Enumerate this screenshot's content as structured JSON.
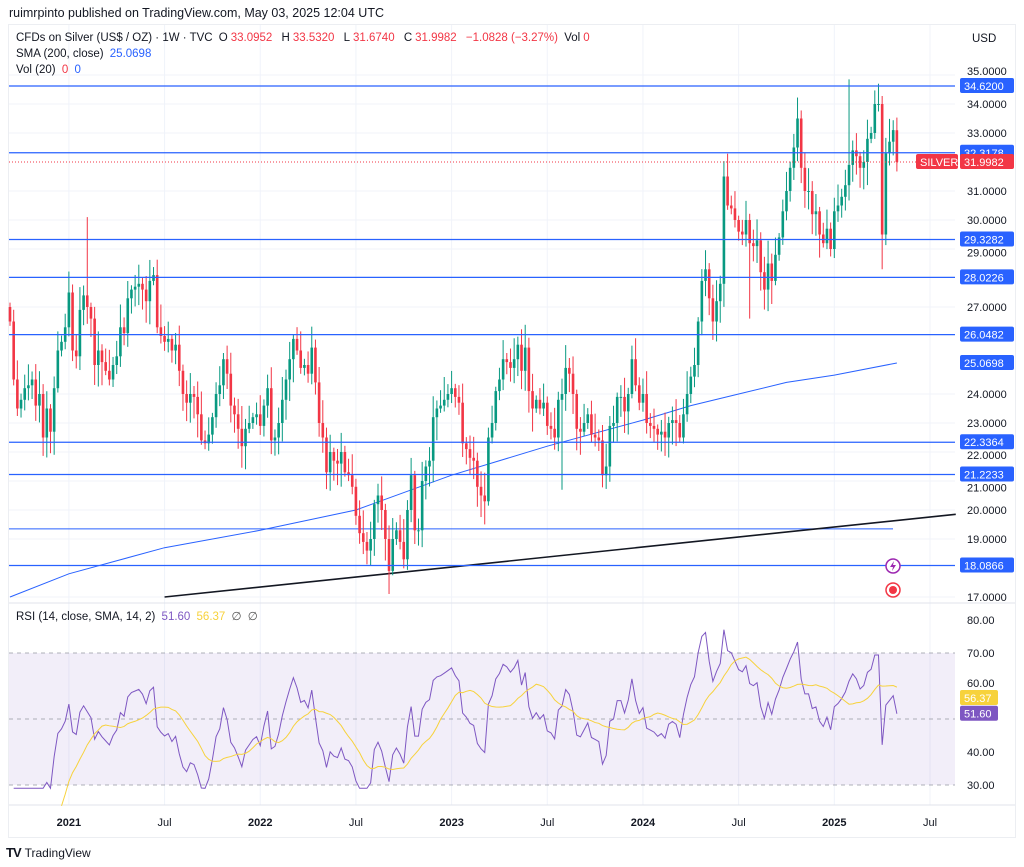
{
  "header": {
    "published": "ruimrpinto published on TradingView.com, May 03, 2025 12:04 UTC",
    "symbol": "CFDs on Silver (US$ / OZ) · 1W · TVC",
    "o_label": "O",
    "o": "33.0952",
    "h_label": "H",
    "h": "33.5320",
    "l_label": "L",
    "l": "31.6740",
    "c_label": "C",
    "c": "31.9982",
    "change": "−1.0828 (−3.27%)",
    "vol_label": "Vol",
    "vol": "0",
    "sma_label": "SMA (200, close)",
    "sma_value": "25.0698",
    "vol20_label": "Vol (20)",
    "vol20_a": "0",
    "vol20_b": "0",
    "currency": "USD"
  },
  "rsi_header": {
    "label": "RSI (14, close, SMA, 14, 2)",
    "rsi": "51.60",
    "sma": "56.37",
    "na1": "∅",
    "na2": "∅"
  },
  "brand": "TradingView",
  "colors": {
    "up": "#089981",
    "down": "#f23645",
    "level": "#2962ff",
    "sma": "#2962ff",
    "rsi": "#7e57c2",
    "rsi_sma": "#f7d23c",
    "trend": "#131722"
  },
  "chart_data": [
    {
      "type": "candlestick",
      "title": "CFDs on Silver (US$ / OZ) · 1W · TVC",
      "ylim": [
        17,
        35
      ],
      "price_ticks": [
        "35.0000",
        "34.0000",
        "33.0000",
        "31.0000",
        "30.0000",
        "29.0000",
        "27.0000",
        "24.0000",
        "23.0000",
        "22.0000",
        "21.0000",
        "20.0000",
        "19.0000",
        "17.0000"
      ],
      "price_tick_values": [
        35,
        34,
        33,
        31,
        30,
        29,
        27,
        24,
        23,
        22,
        21,
        20,
        19,
        17
      ],
      "time_ticks": [
        {
          "label": "2021",
          "week": 16,
          "bold": true
        },
        {
          "label": "Jul",
          "week": 42
        },
        {
          "label": "2022",
          "week": 68,
          "bold": true
        },
        {
          "label": "Jul",
          "week": 94
        },
        {
          "label": "2023",
          "week": 120,
          "bold": true
        },
        {
          "label": "Jul",
          "week": 146
        },
        {
          "label": "2024",
          "week": 172,
          "bold": true
        },
        {
          "label": "Jul",
          "week": 198
        },
        {
          "label": "2025",
          "week": 224,
          "bold": true
        },
        {
          "label": "Jul",
          "week": 250
        }
      ],
      "weekly_closes": [
        26.5,
        24.5,
        23.5,
        23.8,
        24.2,
        24.3,
        24.5,
        23.6,
        24.0,
        22.5,
        23.5,
        22.7,
        24.2,
        25.5,
        25.8,
        26.3,
        27.5,
        25.5,
        25.3,
        26.9,
        27.4,
        27.0,
        26.6,
        25.0,
        25.5,
        25.1,
        24.8,
        24.5,
        25.0,
        25.3,
        26.3,
        26.1,
        27.3,
        27.6,
        27.7,
        27.8,
        27.6,
        27.2,
        27.9,
        28.1,
        26.3,
        26.0,
        25.8,
        25.9,
        25.5,
        25.7,
        24.8,
        24.0,
        23.7,
        24.0,
        23.9,
        23.3,
        22.4,
        22.3,
        22.6,
        23.2,
        24.0,
        24.3,
        25.2,
        24.7,
        23.6,
        23.3,
        22.8,
        22.2,
        22.8,
        23.0,
        23.2,
        23.3,
        22.9,
        23.6,
        24.2,
        22.4,
        22.5,
        23.0,
        23.8,
        24.5,
        25.2,
        25.9,
        25.5,
        24.9,
        25.0,
        24.7,
        25.6,
        24.4,
        23.0,
        22.5,
        21.3,
        22.0,
        21.7,
        21.6,
        22.0,
        21.3,
        21.2,
        20.8,
        19.8,
        19.2,
        18.9,
        18.6,
        19.0,
        20.2,
        20.5,
        20.0,
        19.0,
        17.9,
        19.0,
        19.3,
        18.9,
        18.3,
        20.0,
        21.2,
        19.3,
        19.3,
        21.0,
        21.5,
        21.7,
        23.2,
        23.5,
        23.6,
        23.8,
        24.0,
        24.2,
        23.9,
        23.7,
        22.3,
        22.1,
        21.8,
        21.7,
        20.8,
        20.5,
        20.3,
        22.5,
        23.0,
        24.1,
        24.5,
        25.2,
        25.1,
        24.9,
        25.2,
        25.7,
        24.8,
        25.6,
        24.1,
        23.5,
        23.8,
        23.5,
        23.7,
        22.9,
        22.8,
        22.5,
        23.8,
        24.0,
        24.9,
        24.7,
        24.0,
        22.8,
        22.7,
        23.0,
        23.3,
        22.6,
        22.5,
        22.4,
        21.2,
        21.5,
        22.9,
        23.0,
        23.9,
        23.9,
        23.4,
        24.0,
        25.2,
        24.3,
        23.7,
        24.0,
        23.0,
        22.9,
        22.8,
        22.6,
        22.7,
        22.5,
        23.0,
        23.1,
        23.0,
        22.5,
        23.3,
        24.0,
        24.6,
        25.0,
        26.5,
        27.9,
        28.3,
        27.3,
        26.5,
        27.2,
        27.8,
        31.5,
        30.5,
        30.4,
        30.0,
        29.6,
        29.5,
        30.0,
        29.2,
        29.1,
        29.3,
        28.2,
        27.6,
        28.5,
        27.9,
        28.8,
        29.4,
        30.3,
        31.0,
        31.8,
        32.5,
        33.5,
        31.8,
        31.0,
        31.0,
        30.2,
        30.3,
        29.5,
        29.2,
        29.7,
        29.0,
        30.3,
        30.5,
        30.8,
        31.2,
        31.9,
        32.4,
        32.2,
        31.8,
        32.0,
        32.8,
        33.0,
        34.0,
        34.0,
        29.5,
        32.3,
        32.7,
        33.1,
        32.0
      ],
      "last_open": 33.0952,
      "last_high": 33.532,
      "last_low": 31.674,
      "last_close": 31.9982,
      "sma200": {
        "name": "SMA (200, close)",
        "weeks": [
          0,
          16,
          42,
          68,
          94,
          120,
          146,
          172,
          185,
          198,
          211,
          224,
          241
        ],
        "values": [
          17.0,
          17.8,
          18.7,
          19.3,
          20.0,
          21.2,
          22.2,
          23.1,
          23.6,
          24.0,
          24.4,
          24.65,
          25.07
        ]
      },
      "levels": [
        "34.6200",
        "32.3178",
        "29.3282",
        "28.0226",
        "26.0482",
        "22.3364",
        "21.2233",
        "18.0866"
      ],
      "extra_level": 19.35,
      "trendline": {
        "from": {
          "week": 42,
          "price": 17.0
        },
        "to": {
          "week": 257,
          "price": 19.85
        }
      },
      "current_price": {
        "label": "SILVER",
        "value": "31.9982"
      },
      "sma_price_label": "25.0698"
    },
    {
      "type": "line",
      "title": "RSI (14, close, SMA, 14, 2)",
      "ylim": [
        29,
        82
      ],
      "ticks": [
        "80.00",
        "70.00",
        "60.00",
        "40.00",
        "30.00"
      ],
      "tick_values": [
        80,
        70,
        60,
        40,
        30
      ],
      "band": [
        30,
        70
      ],
      "middle": 50,
      "last_rsi": "51.60",
      "last_sma": "56.37"
    }
  ]
}
